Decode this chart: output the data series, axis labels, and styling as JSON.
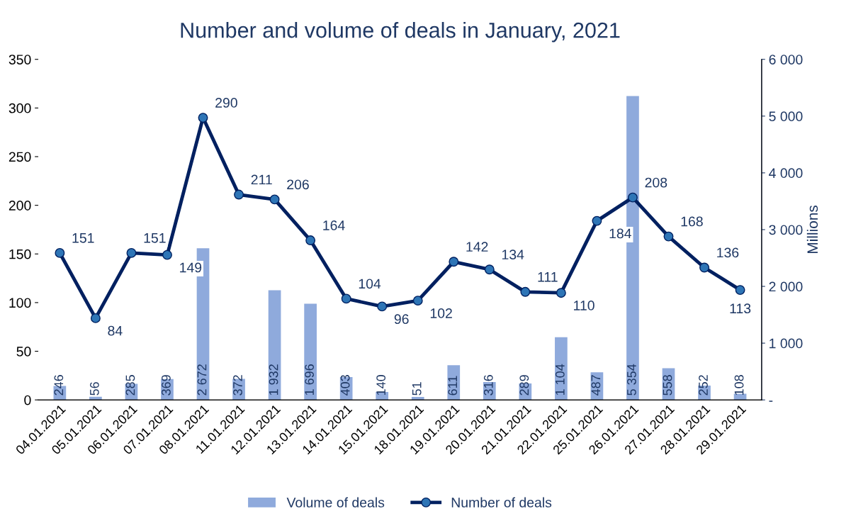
{
  "chart_data": {
    "type": "bar",
    "title": "Number and volume of deals in January, 2021",
    "categories": [
      "04.01.2021",
      "05.01.2021",
      "06.01.2021",
      "07.01.2021",
      "08.01.2021",
      "11.01.2021",
      "12.01.2021",
      "13.01.2021",
      "14.01.2021",
      "15.01.2021",
      "18.01.2021",
      "19.01.2021",
      "20.01.2021",
      "21.01.2021",
      "22.01.2021",
      "25.01.2021",
      "26.01.2021",
      "27.01.2021",
      "28.01.2021",
      "29.01.2021"
    ],
    "series": [
      {
        "name": "Volume of deals",
        "axis": "y2",
        "color": "#8faadc",
        "values": [
          246,
          56,
          285,
          369,
          2672,
          372,
          1932,
          1696,
          403,
          140,
          51,
          611,
          316,
          289,
          1104,
          487,
          5354,
          558,
          252,
          108
        ],
        "value_labels": [
          "246",
          "56",
          "285",
          "369",
          "2 672",
          "372",
          "1 932",
          "1 696",
          "403",
          "140",
          "51",
          "611",
          "316",
          "289",
          "1 104",
          "487",
          "5 354",
          "558",
          "252",
          "108"
        ]
      },
      {
        "name": "Number of deals",
        "type": "line",
        "axis": "y",
        "color": "#002060",
        "marker": "circle",
        "line_style": "solid",
        "values": [
          151,
          84,
          151,
          149,
          290,
          211,
          206,
          164,
          104,
          96,
          102,
          142,
          134,
          111,
          110,
          184,
          208,
          168,
          136,
          113
        ],
        "value_labels": [
          "151",
          "84",
          "151",
          "149",
          "290",
          "211",
          "206",
          "164",
          "104",
          "96",
          "102",
          "142",
          "134",
          "111",
          "110",
          "184",
          "208",
          "168",
          "136",
          "113"
        ]
      }
    ],
    "ylim": [
      0,
      350
    ],
    "yticks": [
      0,
      50,
      100,
      150,
      200,
      250,
      300,
      350
    ],
    "y2lim": [
      0,
      6000
    ],
    "y2ticks": [
      {
        "value": 0,
        "label": "-"
      },
      {
        "value": 1000,
        "label": "1 000"
      },
      {
        "value": 2000,
        "label": "2 000"
      },
      {
        "value": 3000,
        "label": "3 000"
      },
      {
        "value": 4000,
        "label": "4 000"
      },
      {
        "value": 5000,
        "label": "5 000"
      },
      {
        "value": 6000,
        "label": "6 000"
      }
    ],
    "y2label": "Millions",
    "grid": false,
    "legend": "bottom"
  }
}
